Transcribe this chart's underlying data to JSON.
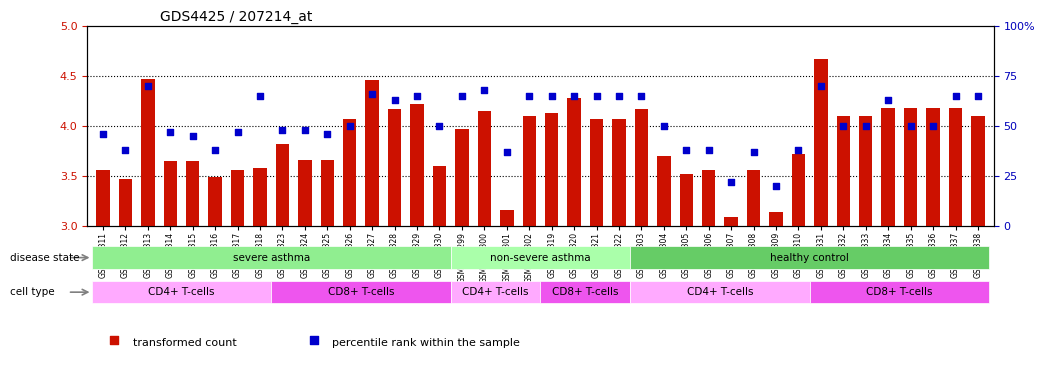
{
  "title": "GDS4425 / 207214_at",
  "samples": [
    "GSM788311",
    "GSM788312",
    "GSM788313",
    "GSM788314",
    "GSM788315",
    "GSM788316",
    "GSM788317",
    "GSM788318",
    "GSM788323",
    "GSM788324",
    "GSM788325",
    "GSM788326",
    "GSM788327",
    "GSM788328",
    "GSM788329",
    "GSM788330",
    "GSM7882299",
    "GSM7882300",
    "GSM7882301",
    "GSM7882302",
    "GSM788319",
    "GSM788320",
    "GSM788321",
    "GSM788322",
    "GSM788303",
    "GSM788304",
    "GSM788305",
    "GSM788306",
    "GSM788307",
    "GSM788308",
    "GSM788309",
    "GSM788310",
    "GSM788331",
    "GSM788332",
    "GSM788333",
    "GSM788334",
    "GSM788335",
    "GSM788336",
    "GSM788337",
    "GSM788338"
  ],
  "bar_values": [
    3.56,
    3.47,
    4.47,
    3.65,
    3.65,
    3.49,
    3.56,
    3.58,
    3.82,
    3.66,
    3.66,
    4.07,
    4.46,
    4.17,
    4.22,
    3.6,
    3.97,
    4.15,
    3.16,
    4.1,
    4.13,
    4.28,
    4.07,
    4.07,
    4.17,
    3.7,
    3.52,
    3.56,
    3.09,
    3.56,
    3.14,
    3.72,
    4.67,
    4.1,
    4.1,
    4.18,
    4.18,
    4.18,
    4.18,
    4.1
  ],
  "dot_values": [
    46,
    38,
    70,
    47,
    45,
    38,
    47,
    65,
    48,
    48,
    46,
    50,
    66,
    63,
    65,
    50,
    65,
    68,
    37,
    65,
    65,
    65,
    65,
    65,
    65,
    50,
    38,
    38,
    22,
    37,
    20,
    38,
    70,
    50,
    50,
    63,
    50,
    50,
    65,
    65
  ],
  "ylim_left": [
    3.0,
    5.0
  ],
  "ylim_right": [
    0,
    100
  ],
  "yticks_left": [
    3.0,
    3.5,
    4.0,
    4.5,
    5.0
  ],
  "yticks_right": [
    0,
    25,
    50,
    75,
    100
  ],
  "bar_color": "#cc1100",
  "dot_color": "#0000cc",
  "grid_lines": [
    3.5,
    4.0,
    4.5
  ],
  "disease_state_bands": [
    {
      "label": "severe asthma",
      "start": 0,
      "end": 15,
      "color": "#90ee90"
    },
    {
      "label": "non-severe asthma",
      "start": 16,
      "end": 23,
      "color": "#aaffaa"
    },
    {
      "label": "healthy control",
      "start": 24,
      "end": 39,
      "color": "#66cc66"
    }
  ],
  "cell_type_bands": [
    {
      "label": "CD4+ T-cells",
      "start": 0,
      "end": 7,
      "color": "#ffaaff"
    },
    {
      "label": "CD8+ T-cells",
      "start": 8,
      "end": 15,
      "color": "#ee55ee"
    },
    {
      "label": "CD4+ T-cells",
      "start": 16,
      "end": 19,
      "color": "#ffaaff"
    },
    {
      "label": "CD8+ T-cells",
      "start": 20,
      "end": 23,
      "color": "#ee55ee"
    },
    {
      "label": "CD4+ T-cells",
      "start": 24,
      "end": 31,
      "color": "#ffaaff"
    },
    {
      "label": "CD8+ T-cells",
      "start": 32,
      "end": 39,
      "color": "#ee55ee"
    }
  ],
  "legend_items": [
    {
      "label": "transformed count",
      "color": "#cc1100",
      "marker": "s"
    },
    {
      "label": "percentile rank within the sample",
      "color": "#0000cc",
      "marker": "s"
    }
  ],
  "disease_label": "disease state",
  "cell_label": "cell type",
  "bg_color": "#ffffff",
  "axis_left_color": "#cc1100",
  "axis_right_color": "#0000bb"
}
